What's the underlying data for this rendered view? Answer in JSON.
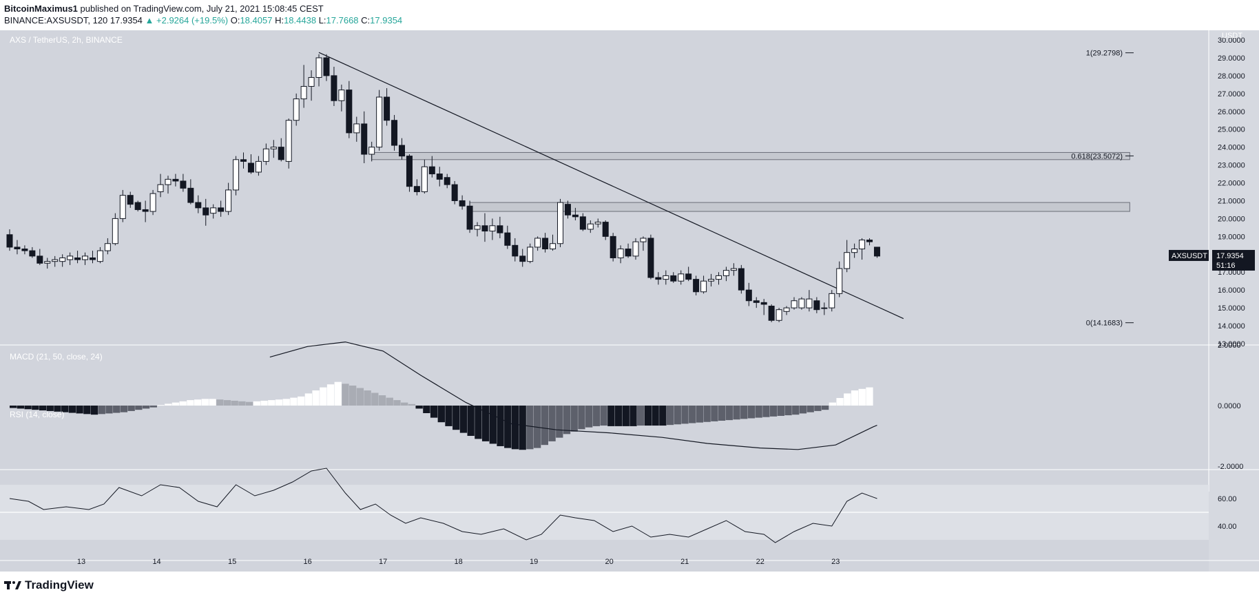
{
  "header": {
    "author": "BitcoinMaximus1",
    "published": "published on TradingView.com, July 21, 2021 15:08:45 CEST",
    "symbol_line": "BINANCE:AXSUSDT, 120",
    "last": "17.9354",
    "change": "▲ +2.9264 (+19.5%)",
    "o_label": "O:",
    "o_value": "18.4057",
    "h_label": "H:",
    "h_value": "18.4438",
    "l_label": "L:",
    "l_value": "17.7668",
    "c_label": "C:",
    "c_value": "17.9354"
  },
  "footer": {
    "brand": "TradingView"
  },
  "chart_data": [
    {
      "type": "candlestick",
      "title": "AXS / TetherUS, 2h, BINANCE",
      "currency_label": "USDT",
      "ylim": [
        13.0,
        30.0
      ],
      "y_ticks": [
        "13.0000",
        "14.0000",
        "15.0000",
        "16.0000",
        "17.0000",
        "18.0000",
        "19.0000",
        "20.0000",
        "21.0000",
        "22.0000",
        "23.0000",
        "24.0000",
        "25.0000",
        "26.0000",
        "27.0000",
        "28.0000",
        "29.0000",
        "30.0000"
      ],
      "x_ticks": [
        "13",
        "14",
        "15",
        "16",
        "17",
        "18",
        "19",
        "20",
        "21",
        "22",
        "23"
      ],
      "x_tick_values": [
        12.5,
        13.5,
        14.5,
        15.5,
        16.5,
        17.5,
        18.5,
        19.5,
        20.5,
        21.5,
        22.5
      ],
      "xlim": [
        11.55,
        23.0
      ],
      "candles": [
        [
          11.55,
          19.1,
          19.4,
          18.2,
          18.4
        ],
        [
          11.65,
          18.4,
          18.8,
          18.0,
          18.3
        ],
        [
          11.75,
          18.3,
          18.5,
          18.0,
          18.2
        ],
        [
          11.85,
          18.2,
          18.4,
          17.8,
          17.9
        ],
        [
          11.95,
          17.9,
          18.3,
          17.4,
          17.5
        ],
        [
          12.05,
          17.5,
          17.8,
          17.2,
          17.6
        ],
        [
          12.15,
          17.6,
          17.9,
          17.3,
          17.7
        ],
        [
          12.25,
          17.6,
          18.0,
          17.3,
          17.8
        ],
        [
          12.35,
          17.7,
          18.1,
          17.4,
          17.9
        ],
        [
          12.45,
          17.8,
          18.2,
          17.5,
          17.7
        ],
        [
          12.55,
          17.7,
          18.1,
          17.4,
          17.9
        ],
        [
          12.65,
          17.8,
          18.2,
          17.5,
          17.7
        ],
        [
          12.75,
          17.6,
          18.4,
          17.5,
          18.2
        ],
        [
          12.85,
          18.2,
          18.9,
          18.0,
          18.6
        ],
        [
          12.95,
          18.6,
          20.3,
          18.5,
          20.0
        ],
        [
          13.05,
          20.0,
          21.6,
          19.8,
          21.3
        ],
        [
          13.15,
          21.3,
          21.5,
          20.6,
          20.8
        ],
        [
          13.25,
          20.9,
          21.0,
          20.4,
          20.5
        ],
        [
          13.35,
          20.5,
          21.0,
          19.8,
          20.4
        ],
        [
          13.45,
          20.4,
          21.6,
          20.2,
          21.4
        ],
        [
          13.55,
          21.5,
          22.5,
          21.2,
          21.9
        ],
        [
          13.65,
          21.9,
          22.4,
          21.4,
          22.2
        ],
        [
          13.75,
          22.2,
          22.5,
          21.8,
          22.1
        ],
        [
          13.85,
          22.1,
          22.5,
          21.5,
          21.7
        ],
        [
          13.95,
          21.7,
          22.2,
          20.8,
          20.9
        ],
        [
          14.05,
          20.9,
          21.3,
          20.3,
          20.6
        ],
        [
          14.15,
          20.6,
          21.1,
          19.6,
          20.2
        ],
        [
          14.25,
          20.3,
          20.8,
          20.0,
          20.6
        ],
        [
          14.35,
          20.6,
          21.0,
          20.1,
          20.4
        ],
        [
          14.45,
          20.4,
          22.0,
          20.2,
          21.6
        ],
        [
          14.55,
          21.6,
          23.5,
          21.3,
          23.3
        ],
        [
          14.65,
          23.3,
          23.7,
          22.8,
          23.2
        ],
        [
          14.75,
          23.1,
          23.6,
          22.5,
          22.6
        ],
        [
          14.85,
          22.6,
          23.5,
          22.4,
          23.2
        ],
        [
          14.95,
          23.2,
          24.2,
          23.0,
          23.9
        ],
        [
          15.05,
          23.9,
          24.4,
          23.4,
          24.0
        ],
        [
          15.15,
          24.0,
          24.5,
          23.2,
          23.3
        ],
        [
          15.25,
          23.2,
          25.6,
          22.8,
          25.5
        ],
        [
          15.35,
          25.5,
          27.0,
          25.2,
          26.7
        ],
        [
          15.45,
          26.7,
          28.6,
          26.2,
          27.4
        ],
        [
          15.55,
          27.4,
          28.3,
          26.6,
          27.9
        ],
        [
          15.65,
          27.9,
          29.2,
          27.4,
          29.0
        ],
        [
          15.75,
          29.0,
          29.2,
          27.7,
          28.0
        ],
        [
          15.85,
          28.0,
          28.5,
          26.3,
          26.6
        ],
        [
          15.95,
          26.6,
          27.5,
          26.0,
          27.2
        ],
        [
          16.05,
          27.2,
          27.7,
          24.5,
          24.8
        ],
        [
          16.15,
          24.8,
          25.7,
          24.3,
          25.3
        ],
        [
          16.25,
          25.3,
          26.0,
          23.1,
          23.6
        ],
        [
          16.35,
          23.6,
          24.3,
          23.2,
          24.0
        ],
        [
          16.45,
          24.0,
          27.2,
          23.8,
          26.8
        ],
        [
          16.55,
          26.8,
          27.3,
          25.2,
          25.5
        ],
        [
          16.65,
          25.5,
          25.8,
          23.8,
          24.1
        ],
        [
          16.75,
          24.1,
          24.5,
          23.3,
          23.5
        ],
        [
          16.85,
          23.5,
          23.6,
          21.5,
          21.8
        ],
        [
          16.95,
          21.8,
          22.2,
          21.3,
          21.5
        ],
        [
          17.05,
          21.5,
          23.3,
          21.4,
          22.9
        ],
        [
          17.15,
          22.9,
          23.5,
          22.3,
          22.5
        ],
        [
          17.25,
          22.5,
          22.9,
          21.8,
          22.2
        ],
        [
          17.35,
          22.3,
          22.5,
          21.7,
          21.9
        ],
        [
          17.45,
          21.9,
          22.1,
          20.8,
          21.0
        ],
        [
          17.55,
          21.0,
          21.3,
          20.5,
          20.7
        ],
        [
          17.65,
          20.7,
          21.0,
          19.2,
          19.4
        ],
        [
          17.75,
          19.4,
          19.8,
          19.0,
          19.6
        ],
        [
          17.85,
          19.6,
          20.3,
          18.7,
          19.3
        ],
        [
          17.95,
          19.3,
          20.0,
          18.8,
          19.6
        ],
        [
          18.05,
          19.6,
          20.1,
          18.9,
          19.2
        ],
        [
          18.15,
          19.2,
          19.6,
          18.3,
          18.5
        ],
        [
          18.25,
          18.5,
          18.9,
          17.6,
          17.9
        ],
        [
          18.35,
          17.9,
          18.3,
          17.3,
          17.6
        ],
        [
          18.45,
          17.6,
          18.6,
          17.5,
          18.4
        ],
        [
          18.55,
          18.4,
          19.0,
          18.2,
          18.9
        ],
        [
          18.65,
          18.9,
          19.2,
          18.1,
          18.3
        ],
        [
          18.75,
          18.3,
          19.1,
          18.2,
          18.6
        ],
        [
          18.85,
          18.6,
          21.1,
          18.4,
          20.9
        ],
        [
          18.95,
          20.8,
          21.0,
          20.0,
          20.2
        ],
        [
          19.05,
          20.2,
          20.6,
          19.9,
          20.1
        ],
        [
          19.15,
          20.1,
          20.3,
          19.3,
          19.4
        ],
        [
          19.25,
          19.4,
          19.9,
          19.2,
          19.7
        ],
        [
          19.35,
          19.7,
          20.0,
          19.5,
          19.8
        ],
        [
          19.45,
          19.8,
          19.9,
          18.8,
          19.0
        ],
        [
          19.55,
          19.0,
          19.2,
          17.6,
          17.8
        ],
        [
          19.65,
          17.8,
          18.5,
          17.5,
          18.3
        ],
        [
          19.75,
          18.3,
          18.6,
          17.8,
          17.9
        ],
        [
          19.85,
          17.9,
          18.9,
          17.7,
          18.7
        ],
        [
          19.95,
          18.7,
          19.0,
          18.2,
          18.9
        ],
        [
          20.05,
          18.9,
          19.1,
          16.6,
          16.7
        ],
        [
          20.15,
          16.7,
          17.0,
          16.3,
          16.6
        ],
        [
          20.25,
          16.6,
          17.1,
          16.3,
          16.8
        ],
        [
          20.35,
          16.8,
          17.0,
          16.4,
          16.5
        ],
        [
          20.45,
          16.5,
          17.1,
          16.3,
          16.9
        ],
        [
          20.55,
          16.9,
          17.3,
          16.5,
          16.6
        ],
        [
          20.65,
          16.6,
          16.8,
          15.7,
          15.9
        ],
        [
          20.75,
          15.9,
          16.8,
          15.8,
          16.5
        ],
        [
          20.85,
          16.5,
          16.9,
          16.2,
          16.6
        ],
        [
          20.95,
          16.6,
          17.0,
          16.3,
          16.8
        ],
        [
          21.05,
          16.8,
          17.3,
          16.5,
          17.1
        ],
        [
          21.15,
          17.1,
          17.5,
          16.8,
          17.2
        ],
        [
          21.25,
          17.2,
          17.4,
          15.8,
          16.0
        ],
        [
          21.35,
          16.0,
          16.4,
          15.1,
          15.4
        ],
        [
          21.45,
          15.4,
          15.6,
          15.0,
          15.3
        ],
        [
          21.55,
          15.3,
          15.5,
          14.6,
          15.2
        ],
        [
          21.65,
          15.1,
          15.2,
          14.2,
          14.3
        ],
        [
          21.75,
          14.3,
          15.0,
          14.2,
          14.9
        ],
        [
          21.85,
          14.8,
          15.1,
          14.6,
          15.0
        ],
        [
          21.95,
          15.0,
          15.6,
          14.9,
          15.4
        ],
        [
          22.05,
          15.0,
          15.6,
          14.9,
          15.5
        ],
        [
          22.15,
          15.0,
          16.0,
          14.8,
          15.5
        ],
        [
          22.25,
          15.4,
          15.6,
          14.7,
          14.9
        ],
        [
          22.35,
          15.0,
          15.3,
          14.6,
          15.0
        ],
        [
          22.45,
          15.0,
          16.0,
          14.8,
          15.8
        ],
        [
          22.55,
          15.8,
          17.6,
          15.6,
          17.2
        ],
        [
          22.65,
          17.2,
          18.8,
          17.0,
          18.1
        ],
        [
          22.75,
          18.1,
          18.6,
          17.8,
          18.3
        ],
        [
          22.85,
          18.3,
          18.9,
          17.7,
          18.8
        ],
        [
          22.95,
          18.8,
          18.9,
          18.5,
          18.7
        ],
        [
          23.05,
          18.4,
          18.4,
          17.8,
          17.9
        ]
      ],
      "trendline": {
        "x1": 15.65,
        "y1": 29.3,
        "x2": 23.4,
        "y2": 14.4
      },
      "zones": [
        {
          "x_from": 16.35,
          "x_to": 26.4,
          "y_low": 23.3,
          "y_high": 23.7
        },
        {
          "x_from": 17.65,
          "x_to": 26.4,
          "y_low": 20.4,
          "y_high": 20.9
        }
      ],
      "fib_levels": [
        {
          "label": "1(29.2798)",
          "value": 29.2798
        },
        {
          "label": "0.618(23.5072)",
          "value": 23.5072
        },
        {
          "label": "0(14.1683)",
          "value": 14.1683
        }
      ],
      "last_price": {
        "symbol": "AXSUSDT",
        "price": "17.9354",
        "countdown": "51:16",
        "value": 17.9354
      }
    },
    {
      "type": "bar",
      "title": "MACD (21, 50, close, 24)",
      "ylim": [
        -2.0,
        2.0
      ],
      "y_ticks": [
        "-2.0000",
        "0.0000",
        "2.0000"
      ],
      "histogram": [
        -0.08,
        -0.1,
        -0.12,
        -0.14,
        -0.16,
        -0.18,
        -0.2,
        -0.22,
        -0.24,
        -0.26,
        -0.28,
        -0.3,
        -0.28,
        -0.26,
        -0.24,
        -0.22,
        -0.18,
        -0.14,
        -0.1,
        -0.06,
        0.02,
        0.06,
        0.1,
        0.14,
        0.18,
        0.2,
        0.22,
        0.22,
        0.2,
        0.18,
        0.16,
        0.14,
        0.12,
        0.14,
        0.16,
        0.18,
        0.2,
        0.22,
        0.26,
        0.3,
        0.4,
        0.5,
        0.6,
        0.7,
        0.78,
        0.72,
        0.66,
        0.58,
        0.5,
        0.42,
        0.34,
        0.26,
        0.18,
        0.1,
        0.05,
        -0.1,
        -0.25,
        -0.4,
        -0.55,
        -0.68,
        -0.8,
        -0.9,
        -1.0,
        -1.1,
        -1.18,
        -1.26,
        -1.34,
        -1.4,
        -1.44,
        -1.46,
        -1.44,
        -1.4,
        -1.3,
        -1.18,
        -1.06,
        -0.94,
        -0.86,
        -0.78,
        -0.72,
        -0.68,
        -0.66,
        -0.68,
        -0.68,
        -0.68,
        -0.68,
        -0.66,
        -0.66,
        -0.66,
        -0.66,
        -0.64,
        -0.62,
        -0.6,
        -0.58,
        -0.56,
        -0.54,
        -0.52,
        -0.5,
        -0.48,
        -0.46,
        -0.44,
        -0.42,
        -0.4,
        -0.38,
        -0.36,
        -0.34,
        -0.32,
        -0.3,
        -0.26,
        -0.22,
        -0.18,
        -0.14,
        0.1,
        0.25,
        0.4,
        0.5,
        0.55,
        0.6
      ],
      "signal": [
        [
          15.0,
          1.6
        ],
        [
          15.5,
          1.95
        ],
        [
          16.0,
          2.1
        ],
        [
          16.5,
          1.8
        ],
        [
          17.0,
          1.0
        ],
        [
          17.6,
          0.1
        ],
        [
          18.2,
          -0.6
        ],
        [
          18.8,
          -0.8
        ],
        [
          19.5,
          -0.9
        ],
        [
          20.2,
          -1.05
        ],
        [
          20.8,
          -1.25
        ],
        [
          21.5,
          -1.4
        ],
        [
          22.0,
          -1.45
        ],
        [
          22.5,
          -1.3
        ],
        [
          23.0,
          -0.7
        ],
        [
          23.05,
          -0.65
        ]
      ]
    },
    {
      "type": "line",
      "title": "RSI (14, close)",
      "ylim": [
        20,
        80
      ],
      "y_ticks": [
        "40.00",
        "60.00"
      ],
      "band": [
        30,
        70
      ],
      "reference_lines": [
        50
      ],
      "values": [
        [
          11.55,
          60
        ],
        [
          11.8,
          58
        ],
        [
          12.0,
          52
        ],
        [
          12.3,
          54
        ],
        [
          12.6,
          52
        ],
        [
          12.8,
          56
        ],
        [
          13.0,
          68
        ],
        [
          13.3,
          62
        ],
        [
          13.55,
          70
        ],
        [
          13.8,
          68
        ],
        [
          14.05,
          58
        ],
        [
          14.3,
          54
        ],
        [
          14.55,
          70
        ],
        [
          14.8,
          62
        ],
        [
          15.05,
          66
        ],
        [
          15.3,
          72
        ],
        [
          15.55,
          80
        ],
        [
          15.75,
          82
        ],
        [
          16.0,
          64
        ],
        [
          16.2,
          52
        ],
        [
          16.4,
          56
        ],
        [
          16.6,
          48
        ],
        [
          16.8,
          42
        ],
        [
          17.0,
          46
        ],
        [
          17.3,
          42
        ],
        [
          17.55,
          36
        ],
        [
          17.8,
          34
        ],
        [
          18.1,
          38
        ],
        [
          18.4,
          30
        ],
        [
          18.6,
          34
        ],
        [
          18.85,
          48
        ],
        [
          19.05,
          46
        ],
        [
          19.3,
          44
        ],
        [
          19.55,
          36
        ],
        [
          19.8,
          40
        ],
        [
          20.05,
          32
        ],
        [
          20.3,
          34
        ],
        [
          20.55,
          32
        ],
        [
          20.8,
          38
        ],
        [
          21.05,
          44
        ],
        [
          21.3,
          36
        ],
        [
          21.55,
          34
        ],
        [
          21.7,
          28
        ],
        [
          21.95,
          36
        ],
        [
          22.2,
          42
        ],
        [
          22.45,
          40
        ],
        [
          22.65,
          58
        ],
        [
          22.85,
          64
        ],
        [
          23.05,
          60
        ]
      ]
    }
  ]
}
